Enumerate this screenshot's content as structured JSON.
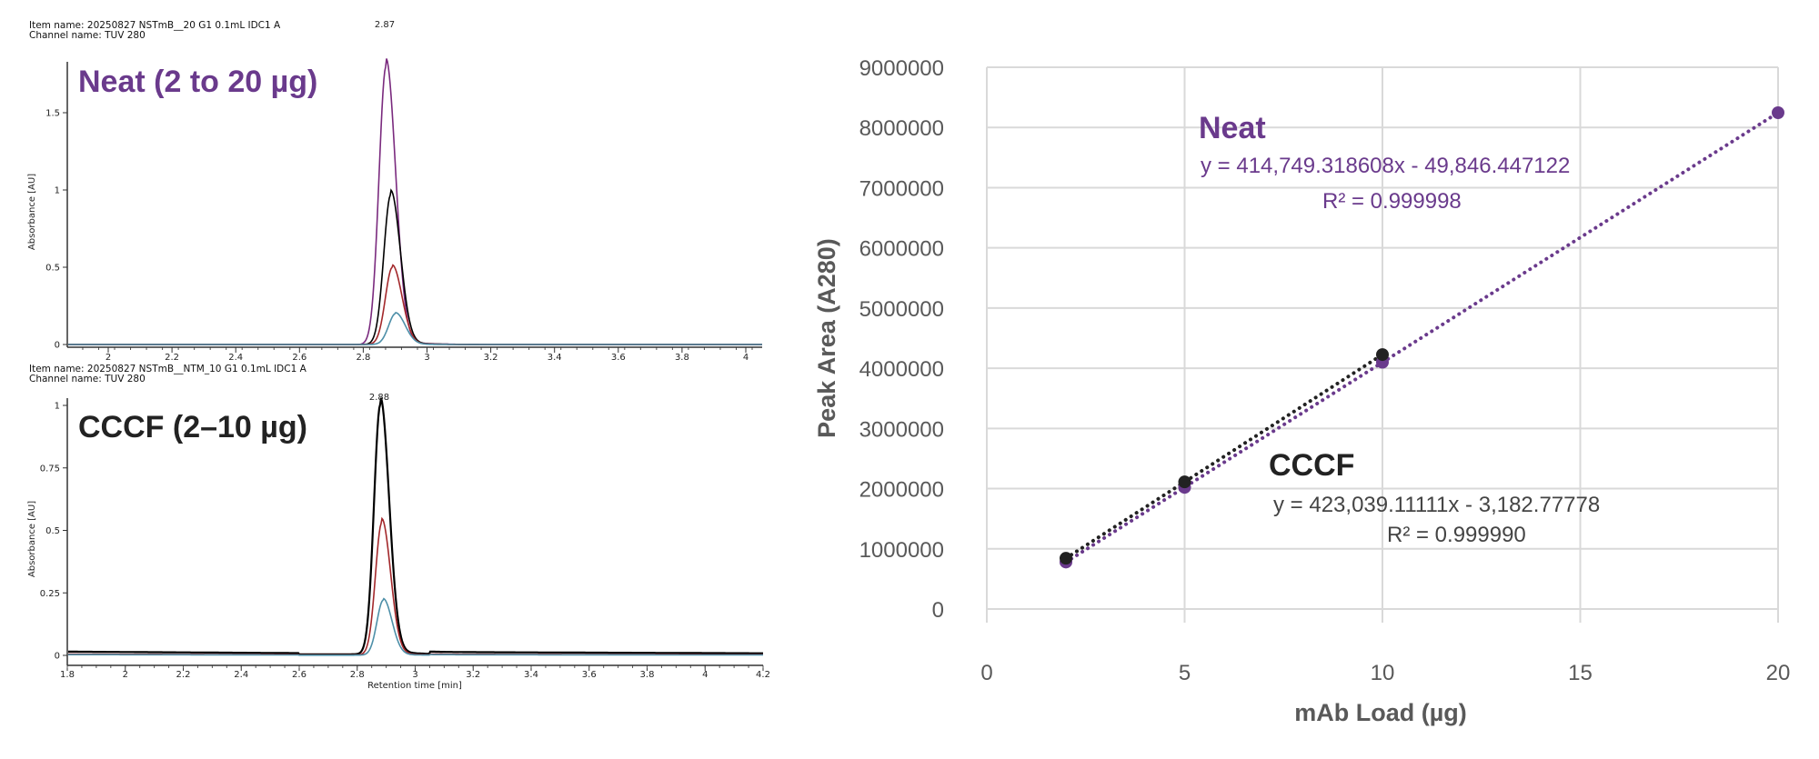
{
  "colors": {
    "neat": "#6a3a8c",
    "cccf": "#222222",
    "grid": "#d9d9d9",
    "trace_purple": "#7a2a7e",
    "trace_black": "#000000",
    "trace_red": "#a3282b",
    "trace_teal": "#4d8fa8"
  },
  "chart_data": [
    {
      "type": "line",
      "item_name": "Item name: 20250827 NSTmB__20 G1 0.1mL IDC1 A",
      "channel_name": "Channel name: TUV 280",
      "overlay_title": "Neat (2 to 20 µg)",
      "peak_label": "2.87",
      "ylabel": "Absorbance [AU]",
      "xlabel": "",
      "xlim": [
        1.87,
        4.05
      ],
      "ylim": [
        0,
        1.8
      ],
      "xticks": [
        "2",
        "2.2",
        "2.4",
        "2.6",
        "2.8",
        "3",
        "3.2",
        "3.4",
        "3.6",
        "3.8",
        "4"
      ],
      "yticks": [
        "0",
        "0.5",
        "1",
        "1.5"
      ],
      "series": [
        {
          "color": "#7a2a7e",
          "peak_rt": 2.87,
          "peak_height": 1.8
        },
        {
          "color": "#000000",
          "peak_rt": 2.885,
          "peak_height": 0.97
        },
        {
          "color": "#a3282b",
          "peak_rt": 2.89,
          "peak_height": 0.5
        },
        {
          "color": "#4d8fa8",
          "peak_rt": 2.9,
          "peak_height": 0.2
        }
      ]
    },
    {
      "type": "line",
      "item_name": "Item name: 20250827 NSTmB__NTM_10 G1 0.1mL IDC1 A",
      "channel_name": "Channel name: TUV 280",
      "overlay_title": "CCCF (2–10 µg)",
      "peak_label": "2.88",
      "ylabel": "Absorbance [AU]",
      "xlabel": "Retention time [min]",
      "xlim": [
        1.8,
        4.2
      ],
      "ylim": [
        0,
        1.03
      ],
      "xticks": [
        "1.8",
        "2",
        "2.2",
        "2.4",
        "2.6",
        "2.8",
        "3",
        "3.2",
        "3.4",
        "3.6",
        "3.8",
        "4",
        "4.2"
      ],
      "yticks": [
        "0",
        "0.25",
        "0.5",
        "0.75",
        "1"
      ],
      "series": [
        {
          "color": "#000000",
          "peak_rt": 2.88,
          "peak_height": 1.0,
          "baseline": 0.015
        },
        {
          "color": "#a3282b",
          "peak_rt": 2.885,
          "peak_height": 0.53,
          "baseline": 0.005
        },
        {
          "color": "#4d8fa8",
          "peak_rt": 2.89,
          "peak_height": 0.22,
          "baseline": 0.003
        }
      ]
    },
    {
      "type": "scatter",
      "xlabel": "mAb Load (µg)",
      "ylabel": "Peak Area (A280)",
      "xlim": [
        0,
        20
      ],
      "ylim": [
        0,
        9000000
      ],
      "xticks": [
        "0",
        "5",
        "10",
        "15",
        "20"
      ],
      "yticks": [
        "0",
        "1000000",
        "2000000",
        "3000000",
        "4000000",
        "5000000",
        "6000000",
        "7000000",
        "8000000",
        "9000000"
      ],
      "grid": true,
      "series": [
        {
          "name": "Neat",
          "color": "#6a3a8c",
          "x": [
            2,
            5,
            10,
            20
          ],
          "y": [
            780000,
            2020000,
            4100000,
            8245000
          ],
          "trendline": "linear",
          "equation": "y = 414,749.318608x - 49,846.447122",
          "r2": "R² = 0.999998"
        },
        {
          "name": "CCCF",
          "color": "#222222",
          "x": [
            2,
            5,
            10
          ],
          "y": [
            843000,
            2112000,
            4227000
          ],
          "trendline": "linear",
          "equation": "y = 423,039.11111x - 3,182.77778",
          "r2": "R² = 0.999990"
        }
      ]
    }
  ]
}
